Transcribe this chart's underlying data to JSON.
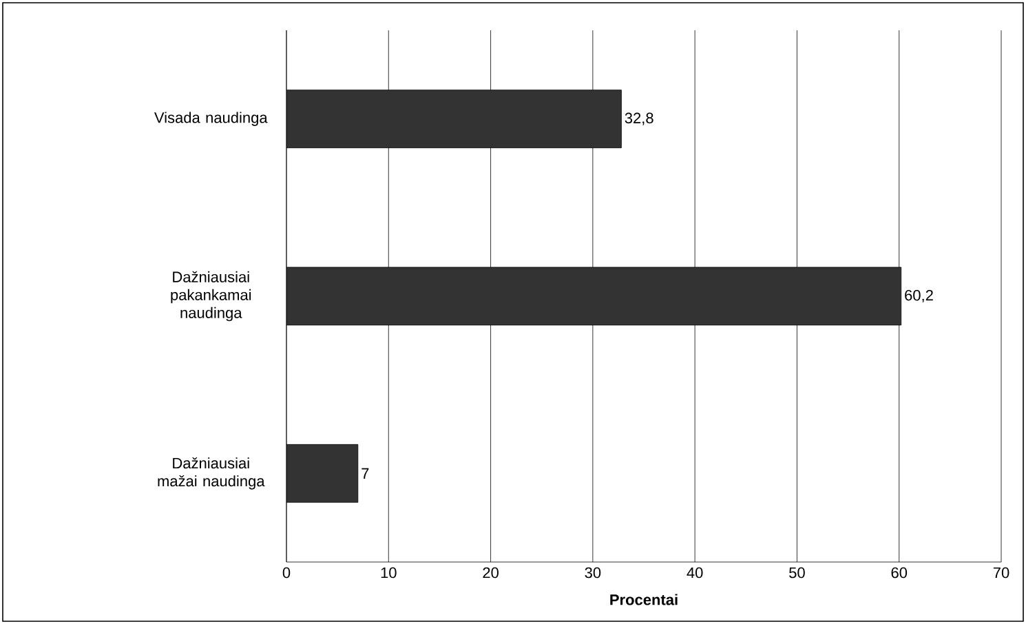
{
  "chart_data": {
    "type": "bar",
    "orientation": "horizontal",
    "xlabel": "Procentai",
    "categories": [
      "Visada naudinga",
      "Dažniausiai pakankamai naudinga",
      "Dažniausiai mažai naudinga"
    ],
    "values": [
      32.8,
      60.2,
      7
    ],
    "value_labels": [
      "32,8",
      "60,2",
      "7"
    ],
    "color": "#333333",
    "xlim": [
      0,
      70
    ],
    "xticks": [
      0,
      10,
      20,
      30,
      40,
      50,
      60,
      70
    ],
    "grid": "x"
  }
}
